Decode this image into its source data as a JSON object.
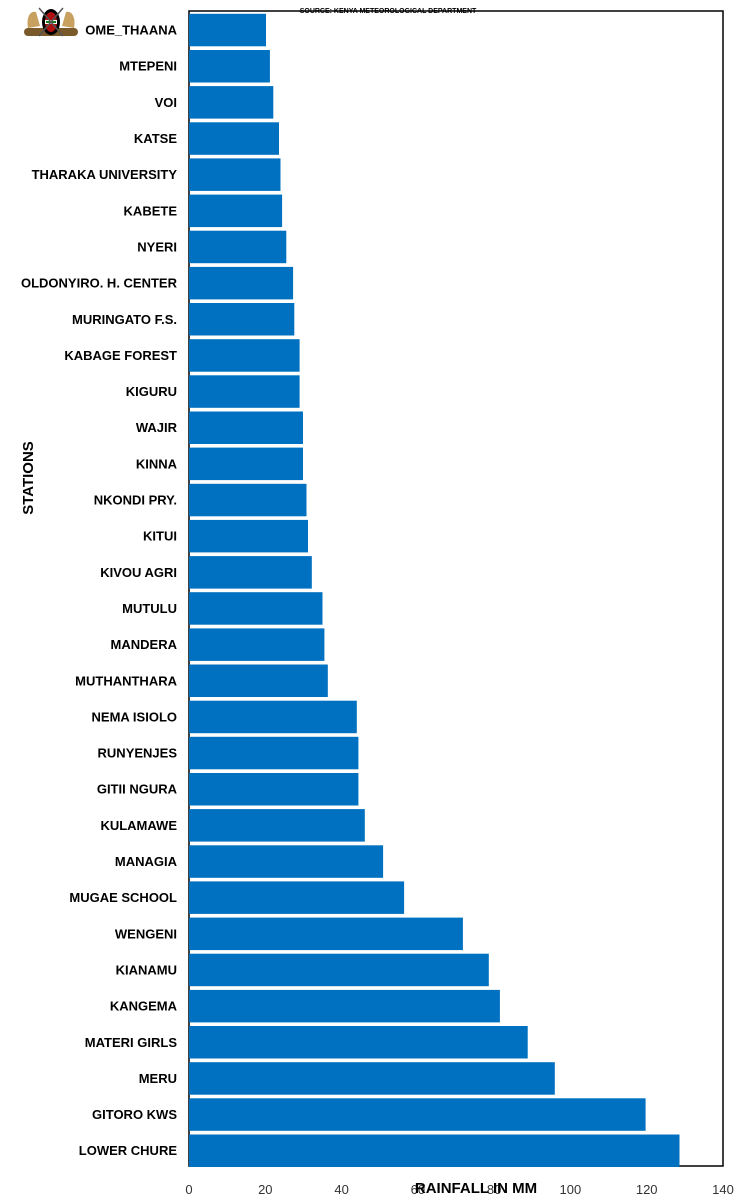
{
  "source_note": "SOURCE: KENYA METEOROLOGICAL DEPARTMENT",
  "logo_icon": "kenya-coat-of-arms-icon",
  "chart_data": {
    "type": "bar",
    "orientation": "horizontal",
    "title": "",
    "xlabel": "RAINFALL IN MM",
    "ylabel": "STATIONS",
    "xlim": [
      0,
      140
    ],
    "xticks": [
      0,
      20,
      40,
      60,
      80,
      100,
      120,
      140
    ],
    "grid": false,
    "legend": "none",
    "bar_color": "#0070C0",
    "categories": [
      "OME_THAANA",
      "MTEPENI",
      "VOI",
      "KATSE",
      "THARAKA UNIVERSITY",
      "KABETE",
      "NYERI",
      "OLDONYIRO. H. CENTER",
      "MURINGATO F.S.",
      "KABAGE FOREST",
      "KIGURU",
      "WAJIR",
      "KINNA",
      "NKONDI PRY.",
      "KITUI",
      "KIVOU AGRI",
      "MUTULU",
      "MANDERA",
      "MUTHANTHARA",
      "NEMA ISIOLO",
      "RUNYENJES",
      "GITII NGURA",
      "KULAMAWE",
      "MANAGIA",
      "MUGAE SCHOOL",
      "WENGENI",
      "KIANAMU",
      "KANGEMA",
      "MATERI GIRLS",
      "MERU",
      "GITORO KWS",
      "LOWER CHURE"
    ],
    "values": [
      20.2,
      21.2,
      22.1,
      23.6,
      24.0,
      24.4,
      25.5,
      27.3,
      27.6,
      29.0,
      29.0,
      29.9,
      29.9,
      30.8,
      31.2,
      32.2,
      35.0,
      35.5,
      36.4,
      44.0,
      44.4,
      44.4,
      46.1,
      50.9,
      56.4,
      71.8,
      78.6,
      81.5,
      88.8,
      95.9,
      119.7,
      128.6
    ]
  }
}
